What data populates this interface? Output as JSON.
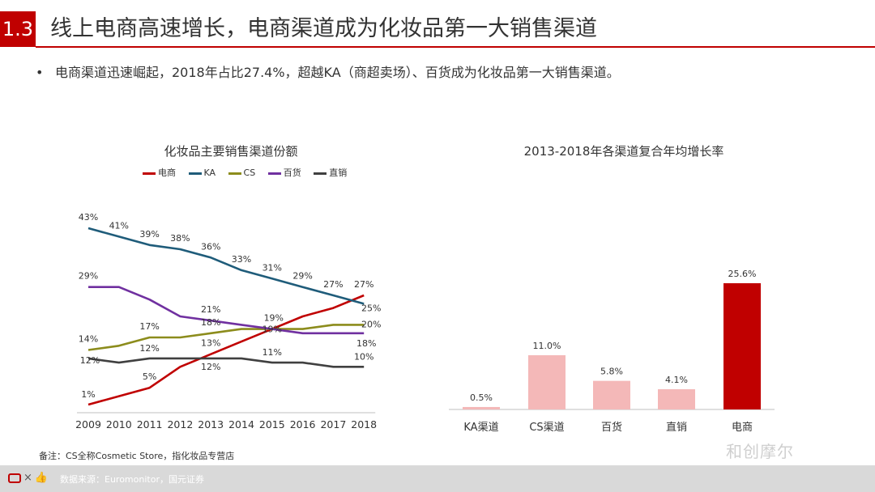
{
  "header": {
    "section_number": "1.3",
    "title": "线上电商高速增长，电商渠道成为化妆品第一大销售渠道"
  },
  "bullet": {
    "marker": "•",
    "text": "电商渠道迅速崛起，2018年占比27.4%，超越KA（商超卖场）、百货成为化妆品第一大销售渠道。"
  },
  "colors": {
    "accent": "#c00000",
    "ecommerce": "#c00000",
    "ka": "#1f5c7a",
    "cs": "#8c8c1c",
    "department": "#7030a0",
    "direct": "#404040",
    "bar_light": "#f4b8b8",
    "bar_dark": "#c00000"
  },
  "chart_data": [
    {
      "type": "line",
      "title": "化妆品主要销售渠道份额",
      "x": [
        "2009",
        "2010",
        "2011",
        "2012",
        "2013",
        "2014",
        "2015",
        "2016",
        "2017",
        "2018"
      ],
      "ylim": [
        0,
        45
      ],
      "series": [
        {
          "name": "电商",
          "key": "ecommerce",
          "values": [
            1,
            3,
            5,
            10,
            13,
            16,
            19,
            22,
            24,
            27
          ]
        },
        {
          "name": "KA",
          "key": "ka",
          "values": [
            43,
            41,
            39,
            38,
            36,
            33,
            31,
            29,
            27,
            25
          ]
        },
        {
          "name": "CS",
          "key": "cs",
          "values": [
            14,
            15,
            17,
            17,
            18,
            19,
            19,
            19,
            20,
            20
          ]
        },
        {
          "name": "百货",
          "key": "department",
          "values": [
            29,
            29,
            26,
            22,
            21,
            20,
            19,
            18,
            18,
            18
          ]
        },
        {
          "name": "直销",
          "key": "direct",
          "values": [
            12,
            11,
            12,
            12,
            12,
            12,
            11,
            11,
            10,
            10
          ]
        }
      ],
      "data_labels": [
        {
          "series": "ka",
          "index": 0,
          "text": "43%"
        },
        {
          "series": "ka",
          "index": 1,
          "text": "41%"
        },
        {
          "series": "ka",
          "index": 2,
          "text": "39%"
        },
        {
          "series": "ka",
          "index": 3,
          "text": "38%"
        },
        {
          "series": "ka",
          "index": 4,
          "text": "36%"
        },
        {
          "series": "ka",
          "index": 5,
          "text": "33%"
        },
        {
          "series": "ka",
          "index": 6,
          "text": "31%"
        },
        {
          "series": "ka",
          "index": 7,
          "text": "29%"
        },
        {
          "series": "ka",
          "index": 8,
          "text": "27%"
        },
        {
          "series": "ka",
          "index": 9,
          "text": "25%"
        },
        {
          "series": "department",
          "index": 0,
          "text": "29%"
        },
        {
          "series": "department",
          "index": 4,
          "text": "21%"
        },
        {
          "series": "department",
          "index": 6,
          "text": "19%"
        },
        {
          "series": "department",
          "index": 9,
          "text": "18%"
        },
        {
          "series": "cs",
          "index": 0,
          "text": "14%"
        },
        {
          "series": "cs",
          "index": 2,
          "text": "17%"
        },
        {
          "series": "cs",
          "index": 4,
          "text": "18%"
        },
        {
          "series": "cs",
          "index": 9,
          "text": "20%"
        },
        {
          "series": "direct",
          "index": 0,
          "text": "12%"
        },
        {
          "series": "direct",
          "index": 2,
          "text": "12%"
        },
        {
          "series": "direct",
          "index": 4,
          "text": "12%"
        },
        {
          "series": "direct",
          "index": 6,
          "text": "11%"
        },
        {
          "series": "direct",
          "index": 9,
          "text": "10%"
        },
        {
          "series": "ecommerce",
          "index": 0,
          "text": "1%"
        },
        {
          "series": "ecommerce",
          "index": 2,
          "text": "5%"
        },
        {
          "series": "ecommerce",
          "index": 4,
          "text": "13%"
        },
        {
          "series": "ecommerce",
          "index": 6,
          "text": "19%"
        },
        {
          "series": "ecommerce",
          "index": 9,
          "text": "27%"
        }
      ]
    },
    {
      "type": "bar",
      "title": "2013-2018年各渠道复合年均增长率",
      "categories": [
        "KA渠道",
        "CS渠道",
        "百货",
        "直销",
        "电商"
      ],
      "values": [
        0.5,
        11.0,
        5.8,
        4.1,
        25.6
      ],
      "value_labels": [
        "0.5%",
        "11.0%",
        "5.8%",
        "4.1%",
        "25.6%"
      ],
      "ylim": [
        0,
        25.6
      ]
    }
  ],
  "note": "备注：CS全称Cosmetic Store，指化妆品专营店",
  "footer": {
    "x_mark": "×",
    "source": "数据来源：Euromonitor，国元证券"
  },
  "watermark": "和创摩尔"
}
